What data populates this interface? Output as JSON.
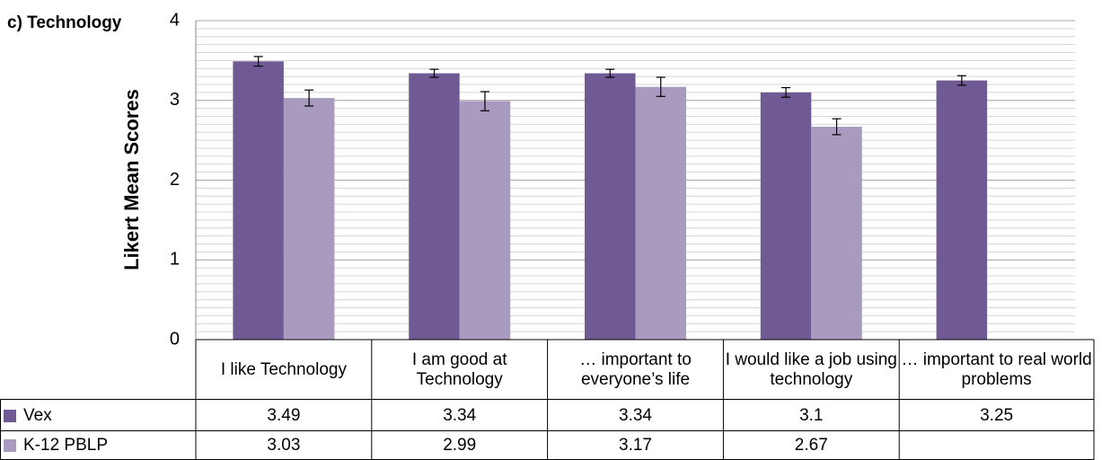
{
  "chart_data": {
    "type": "bar",
    "title": "c) Technology",
    "ylabel": "Likert Mean Scores",
    "categories": [
      "I like Technology",
      "I am good at Technology",
      "… important to everyone’s life",
      "I would like a job using technology",
      "… important to real world problems"
    ],
    "series": [
      {
        "name": "Vex",
        "color": "#6f5a94",
        "values": [
          3.49,
          3.34,
          3.34,
          3.1,
          3.25
        ],
        "errors": [
          0.06,
          0.05,
          0.05,
          0.06,
          0.06
        ]
      },
      {
        "name": "K-12 PBLP",
        "color": "#a99bc0",
        "values": [
          3.03,
          2.99,
          3.17,
          2.67,
          null
        ],
        "errors": [
          0.1,
          0.12,
          0.12,
          0.1,
          null
        ]
      }
    ],
    "ylim": [
      0,
      4
    ],
    "yticks": [
      0,
      1,
      2,
      3,
      4
    ],
    "grid": true,
    "minor_grid_step": 0.1,
    "data_table": true
  }
}
